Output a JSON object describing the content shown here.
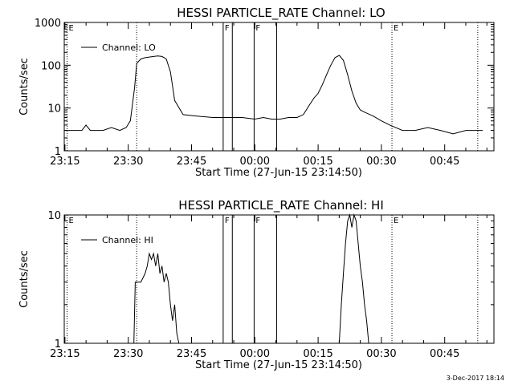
{
  "chart_data": [
    {
      "type": "line",
      "title": "HESSI PARTICLE_RATE Channel: LO",
      "xlabel": "Start Time (27-Jun-15 23:14:50)",
      "ylabel": "Counts/sec",
      "y_scale": "log",
      "ylim": [
        1,
        1000
      ],
      "y_ticks": [
        1,
        10,
        100,
        1000
      ],
      "y_tick_labels": [
        "1",
        "10",
        "100",
        "1000"
      ],
      "x_time_range": [
        "23:14:50",
        "00:56:40"
      ],
      "x_ticks": [
        "23:15",
        "23:30",
        "23:45",
        "00:00",
        "00:15",
        "00:30",
        "00:45"
      ],
      "legend": {
        "position": "top-left",
        "entries": [
          "Channel: LO"
        ]
      },
      "series": [
        {
          "name": "Channel: LO",
          "x": [
            "23:14:50",
            "23:17:00",
            "23:19:00",
            "23:20:00",
            "23:21:00",
            "23:22:00",
            "23:23:00",
            "23:24:00",
            "23:26:00",
            "23:28:00",
            "23:29:30",
            "23:30:30",
            "23:31:30",
            "23:32:00",
            "23:33:00",
            "23:34:00",
            "23:36:00",
            "23:37:00",
            "23:38:00",
            "23:39:00",
            "23:40:00",
            "23:41:00",
            "23:43:00",
            "23:46:00",
            "23:50:00",
            "23:54:00",
            "23:57:00",
            "00:00:00",
            "00:02:00",
            "00:04:00",
            "00:06:00",
            "00:08:00",
            "00:10:00",
            "00:11:30",
            "00:13:00",
            "00:14:00",
            "00:15:00",
            "00:16:00",
            "00:17:00",
            "00:18:00",
            "00:19:00",
            "00:20:00",
            "00:21:00",
            "00:22:00",
            "00:23:00",
            "00:24:00",
            "00:25:00",
            "00:26:00",
            "00:28:00",
            "00:30:00",
            "00:32:00",
            "00:35:00",
            "00:38:00",
            "00:41:00",
            "00:44:00",
            "00:47:00",
            "00:50:00",
            "00:52:00",
            "00:54:00"
          ],
          "y": [
            3,
            3,
            3,
            4,
            3,
            3,
            3,
            3,
            3.5,
            3,
            3.5,
            5,
            30,
            110,
            140,
            150,
            160,
            165,
            160,
            140,
            70,
            15,
            7,
            6.5,
            6,
            6,
            6,
            5.5,
            6,
            5.5,
            5.5,
            6,
            6,
            7,
            12,
            17,
            22,
            35,
            60,
            100,
            150,
            170,
            130,
            60,
            25,
            13,
            9,
            8,
            6.5,
            5,
            4,
            3,
            3,
            3.5,
            3,
            2.5,
            3,
            3,
            3
          ]
        }
      ],
      "annotations": [
        {
          "label": "E",
          "time": "23:15:30",
          "style": "dotted"
        },
        {
          "label": "",
          "time": "23:32:00",
          "style": "dotted"
        },
        {
          "label": "F",
          "time": "23:52:30",
          "style": "solid"
        },
        {
          "label": "",
          "time": "23:54:40",
          "style": "solid"
        },
        {
          "label": "F",
          "time": "23:59:50",
          "style": "solid"
        },
        {
          "label": "",
          "time": "00:05:10",
          "style": "solid"
        },
        {
          "label": "E",
          "time": "00:32:30",
          "style": "dotted"
        },
        {
          "label": "",
          "time": "00:52:50",
          "style": "dotted"
        }
      ]
    },
    {
      "type": "line",
      "title": "HESSI PARTICLE_RATE Channel: HI",
      "xlabel": "Start Time (27-Jun-15 23:14:50)",
      "ylabel": "Counts/sec",
      "y_scale": "log",
      "ylim": [
        1,
        10
      ],
      "y_ticks": [
        1,
        10
      ],
      "y_tick_labels": [
        "1",
        "10"
      ],
      "x_time_range": [
        "23:14:50",
        "00:56:40"
      ],
      "x_ticks": [
        "23:15",
        "23:30",
        "23:45",
        "00:00",
        "00:15",
        "00:30",
        "00:45"
      ],
      "legend": {
        "position": "top-left",
        "entries": [
          "Channel: HI"
        ]
      },
      "series": [
        {
          "name": "Channel: HI",
          "x": [
            "23:31:20",
            "23:31:40",
            "23:32:30",
            "23:33:00",
            "23:34:00",
            "23:34:30",
            "23:35:00",
            "23:35:30",
            "23:36:00",
            "23:36:30",
            "23:37:00",
            "23:37:30",
            "23:38:00",
            "23:38:30",
            "23:39:00",
            "23:39:30",
            "23:40:00",
            "23:40:30",
            "23:41:00",
            "23:41:30",
            "23:42:00",
            "00:20:00",
            "00:20:30",
            "00:21:00",
            "00:21:30",
            "00:22:00",
            "00:22:30",
            "00:23:00",
            "00:23:30",
            "00:24:00",
            "00:24:30",
            "00:25:00",
            "00:25:30",
            "00:26:00",
            "00:26:30",
            "00:27:00"
          ],
          "y": [
            1,
            3,
            3,
            3,
            3.5,
            4,
            5,
            4.5,
            5,
            4,
            5,
            3.5,
            4,
            3,
            3.5,
            3,
            2,
            1.5,
            2,
            1.2,
            1,
            1,
            2,
            3.5,
            6,
            9,
            10,
            8,
            10,
            9,
            6,
            4,
            3,
            2,
            1.5,
            1
          ]
        }
      ],
      "annotations": [
        {
          "label": "E",
          "time": "23:15:30",
          "style": "dotted"
        },
        {
          "label": "",
          "time": "23:32:00",
          "style": "dotted"
        },
        {
          "label": "F",
          "time": "23:52:30",
          "style": "solid"
        },
        {
          "label": "",
          "time": "23:54:40",
          "style": "solid"
        },
        {
          "label": "F",
          "time": "23:59:50",
          "style": "solid"
        },
        {
          "label": "",
          "time": "00:05:10",
          "style": "solid"
        },
        {
          "label": "E",
          "time": "00:32:30",
          "style": "dotted"
        },
        {
          "label": "",
          "time": "00:52:50",
          "style": "dotted"
        }
      ]
    }
  ],
  "footer": {
    "date_stamp": "3-Dec-2017 18:14"
  }
}
